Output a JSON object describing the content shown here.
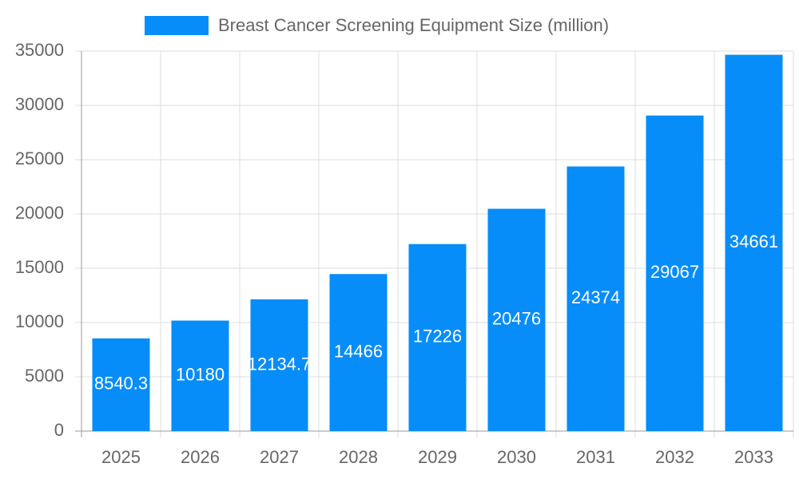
{
  "chart_data": {
    "type": "bar",
    "categories": [
      "2025",
      "2026",
      "2027",
      "2028",
      "2029",
      "2030",
      "2031",
      "2032",
      "2033"
    ],
    "series": [
      {
        "name": "Breast Cancer Screening Equipment Size (million)",
        "color": "#068df9",
        "values": [
          8540.3,
          10180,
          12134.7,
          14466,
          17226,
          20476,
          24374,
          29067,
          34661
        ]
      }
    ],
    "ylim": [
      0,
      35000
    ],
    "yticks": [
      0,
      5000,
      10000,
      15000,
      20000,
      25000,
      30000,
      35000
    ],
    "grid": true,
    "legend": "top"
  }
}
